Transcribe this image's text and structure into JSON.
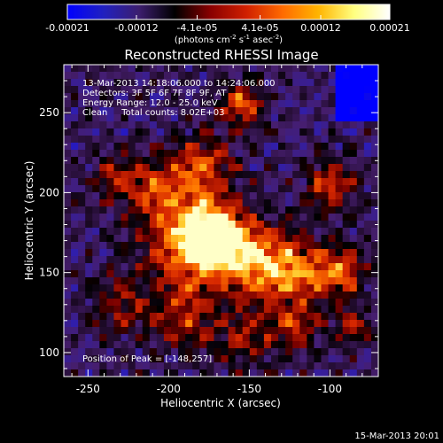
{
  "colorbar": {
    "ticks": [
      "-0.00021",
      "-0.00012",
      "-4.1e-05",
      "4.1e-05",
      "0.00012",
      "0.00021"
    ],
    "tick_values": [
      -0.00021,
      -0.00012,
      -4.1e-05,
      4.1e-05,
      0.00012,
      0.00021
    ],
    "range": [
      -0.00021,
      0.00021
    ],
    "unit_main": "(photons cm",
    "unit_exp1": "-2",
    "unit_mid": " s",
    "unit_exp2": "-1",
    "unit_tail": " asec",
    "unit_exp3": "-2",
    "unit_close": ")",
    "colors": [
      "#0000ff",
      "#2020c0",
      "#3c1e6e",
      "#000000",
      "#8a0000",
      "#d02000",
      "#ff6a00",
      "#ffb400",
      "#ffff80",
      "#ffffff"
    ]
  },
  "chart_data": {
    "type": "heatmap",
    "title": "Reconstructed RHESSI Image",
    "xlabel": "Heliocentric X (arcsec)",
    "ylabel": "Heliocentric Y (arcsec)",
    "xlim": [
      -265,
      -70
    ],
    "ylim": [
      85,
      280
    ],
    "xticks": [
      -250,
      -200,
      -150,
      -100
    ],
    "yticks": [
      100,
      150,
      200,
      250
    ],
    "annotations": {
      "line1": "13-Mar-2013 14:18:06.000 to 14:24:06.000",
      "line2": "Detectors: 3F 5F 6F 7F 8F 9F, AT",
      "line3": "Energy Range: 12.0 - 25.0 keV",
      "line4": "Clean     Total counts: 8.02E+03",
      "peak": "Position of Peak = [-148,257]"
    },
    "peak": [
      -148,
      257
    ]
  },
  "footer": {
    "timestamp": "15-Mar-2013 20:01"
  }
}
